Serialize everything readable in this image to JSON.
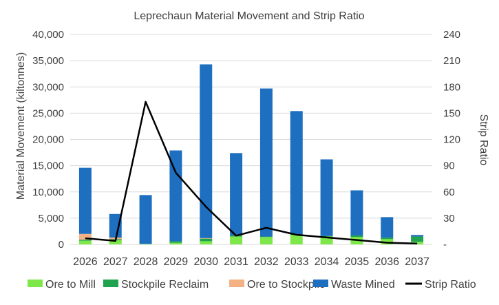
{
  "chart_data": {
    "type": "bar",
    "stacked": true,
    "title": "Leprechaun Material Movement and Strip Ratio",
    "ylabel": "Material Movement (kiltonnes)",
    "y2label": "Strip Ratio",
    "ylim": [
      0,
      40000
    ],
    "y2lim": [
      0,
      240
    ],
    "yticks": [
      "0",
      "5,000",
      "10,000",
      "15,000",
      "20,000",
      "25,000",
      "30,000",
      "35,000",
      "40,000"
    ],
    "y2ticks": [
      "-",
      "30",
      "60",
      "90",
      "120",
      "150",
      "180",
      "210",
      "240"
    ],
    "grid": true,
    "legend_position": "bottom",
    "categories": [
      "2026",
      "2027",
      "2028",
      "2029",
      "2030",
      "2031",
      "2032",
      "2033",
      "2034",
      "2035",
      "2036",
      "2037"
    ],
    "series": [
      {
        "name": "Ore to Mill",
        "color": "#7ee84a",
        "values": [
          700,
          800,
          100,
          300,
          600,
          1500,
          1400,
          1800,
          1500,
          1400,
          1000,
          500
        ]
      },
      {
        "name": "Stockpile Reclaim",
        "color": "#1fa34f",
        "values": [
          200,
          200,
          0,
          300,
          500,
          200,
          100,
          100,
          100,
          300,
          300,
          1000
        ]
      },
      {
        "name": "Ore to Stockpile",
        "color": "#f4b183",
        "values": [
          1100,
          300,
          0,
          0,
          100,
          0,
          0,
          0,
          0,
          0,
          0,
          0
        ]
      },
      {
        "name": "Waste Mined",
        "color": "#1f6fc1",
        "values": [
          12600,
          4500,
          9300,
          17300,
          33100,
          15700,
          28200,
          23500,
          14600,
          8600,
          3900,
          300
        ]
      }
    ],
    "line_series": {
      "name": "Strip Ratio",
      "color": "#000000",
      "axis": "right",
      "values": [
        7,
        4,
        163,
        82,
        43,
        10,
        19,
        11,
        8,
        5,
        2,
        1
      ]
    }
  }
}
